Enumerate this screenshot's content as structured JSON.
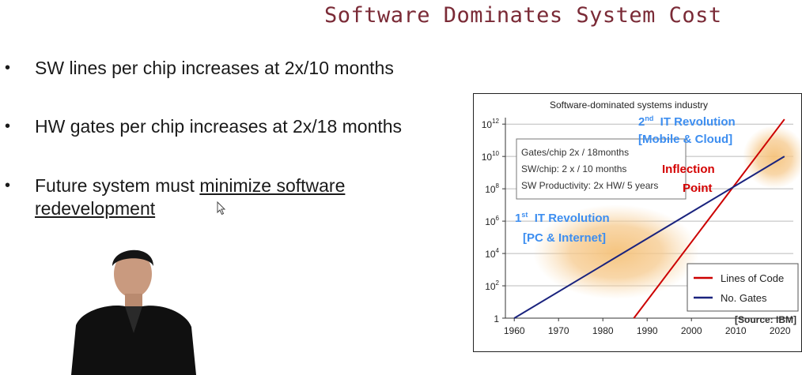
{
  "slide": {
    "title": "Software Dominates System Cost",
    "bullets": [
      {
        "text": "SW lines per chip increases at 2x/10 months"
      },
      {
        "text": "HW gates per chip increases at 2x/18 months"
      },
      {
        "text_plain": "Future system must ",
        "text_underlined_1": "minimize software",
        "text_underlined_2": "redevelopment"
      }
    ],
    "bullet_symbol": "•"
  },
  "chart_data": {
    "type": "line",
    "title": "Software-dominated systems industry",
    "x_ticks": [
      1960,
      1970,
      1980,
      1990,
      2000,
      2010,
      2020
    ],
    "xlim": [
      1958,
      2023
    ],
    "y_scale": "log10",
    "y_ticks": [
      {
        "base": "1",
        "exp": ""
      },
      {
        "base": "10",
        "exp": "2"
      },
      {
        "base": "10",
        "exp": "4"
      },
      {
        "base": "10",
        "exp": "6"
      },
      {
        "base": "10",
        "exp": "8"
      },
      {
        "base": "10",
        "exp": "10"
      },
      {
        "base": "10",
        "exp": "12"
      }
    ],
    "ylim_exp": [
      0,
      12.4
    ],
    "series": [
      {
        "name": "Lines of Code",
        "color": "#cc0000",
        "x": [
          1987,
          2021
        ],
        "y_exp": [
          0,
          12.3
        ]
      },
      {
        "name": "No. Gates",
        "color": "#1a237e",
        "x": [
          1960,
          2021
        ],
        "y_exp": [
          0,
          10
        ]
      }
    ],
    "legend_position": "bottom-right",
    "info_box": [
      "Gates/chip 2x / 18months",
      "SW/chip:  2 x / 10 months",
      "SW Productivity: 2x HW/ 5 years"
    ],
    "annotations": {
      "second_revolution_prefix": "2",
      "second_revolution_sup": "nd",
      "second_revolution_rest": "  IT Revolution",
      "mobile_cloud": "[Mobile & Cloud]",
      "inflection": "Inflection",
      "point": "Point",
      "first_revolution_prefix": "1",
      "first_revolution_sup": "st",
      "first_revolution_rest": "  IT Revolution",
      "pc_internet": "[PC & Internet]",
      "source": "[Source: IBM]"
    },
    "colors": {
      "annotation_blue": "#3d8ef0",
      "annotation_red": "#d40000",
      "glow": "#f2b455"
    }
  }
}
